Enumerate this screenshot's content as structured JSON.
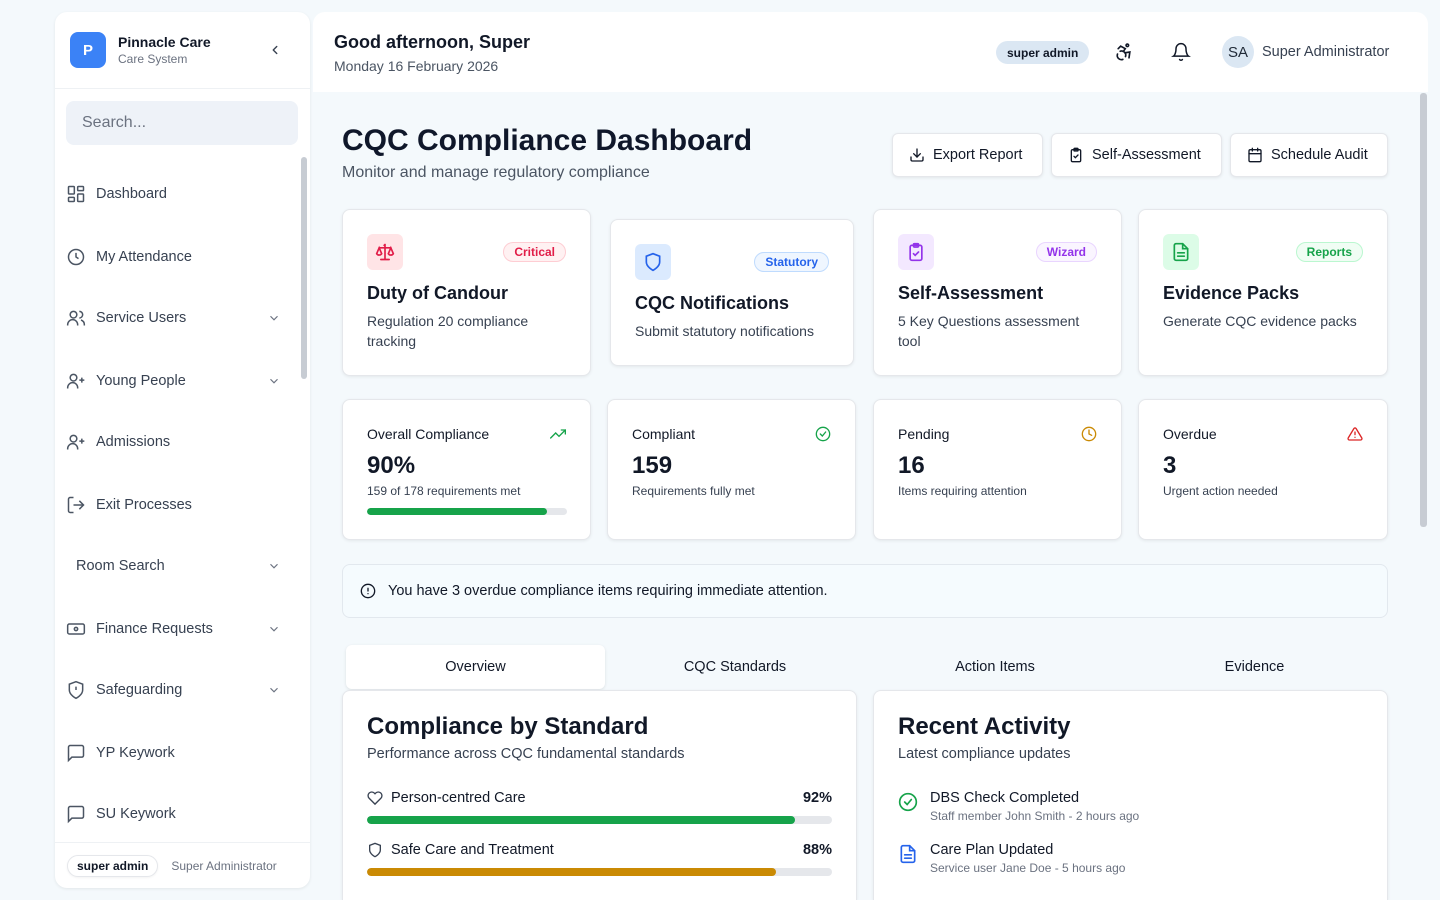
{
  "sidebar": {
    "logo_letter": "P",
    "brand_name": "Pinnacle Care",
    "brand_sub": "Care System",
    "search_placeholder": "Search...",
    "items": [
      {
        "label": "Dashboard",
        "icon": "grid-icon"
      },
      {
        "label": "My Attendance",
        "icon": "clock-icon"
      },
      {
        "label": "Service Users",
        "icon": "users-icon"
      },
      {
        "label": "Young People",
        "icon": "user-plus-icon"
      },
      {
        "label": "Admissions",
        "icon": "user-plus-icon"
      },
      {
        "label": "Exit Processes",
        "icon": "log-out-icon"
      },
      {
        "label": "Room Search"
      },
      {
        "label": "Finance Requests",
        "icon": "banknote-icon"
      },
      {
        "label": "Safeguarding",
        "icon": "shield-alert-icon"
      },
      {
        "label": "YP Keywork",
        "icon": "message-square-icon"
      },
      {
        "label": "SU Keywork",
        "icon": "message-square-icon"
      }
    ],
    "footer_role": "super admin",
    "footer_name": "Super Administrator"
  },
  "header": {
    "greeting": "Good afternoon, Super",
    "date": "Monday 16 February 2026",
    "role": "super admin",
    "avatar_initials": "SA",
    "user_name": "Super Administrator"
  },
  "page": {
    "title": "CQC Compliance Dashboard",
    "subtitle": "Monitor and manage regulatory compliance",
    "buttons": {
      "export": "Export Report",
      "self_assessment": "Self-Assessment",
      "schedule": "Schedule Audit"
    }
  },
  "features": [
    {
      "title": "Duty of Candour",
      "desc": "Regulation 20 compliance tracking",
      "badge": "Critical",
      "color": "#e11d48"
    },
    {
      "title": "CQC Notifications",
      "desc": "Submit statutory notifications",
      "badge": "Statutory",
      "color": "#2563eb"
    },
    {
      "title": "Self-Assessment",
      "desc": "5 Key Questions assessment tool",
      "badge": "Wizard",
      "color": "#9333ea"
    },
    {
      "title": "Evidence Packs",
      "desc": "Generate CQC evidence packs",
      "badge": "Reports",
      "color": "#16a34a"
    }
  ],
  "stats": [
    {
      "label": "Overall Compliance",
      "value": "90%",
      "sub": "159 of 178 requirements met",
      "progress": 0.9,
      "color": "#16a34a"
    },
    {
      "label": "Compliant",
      "value": "159",
      "sub": "Requirements fully met",
      "color": "#16a34a"
    },
    {
      "label": "Pending",
      "value": "16",
      "sub": "Items requiring attention",
      "color": "#ca8a04"
    },
    {
      "label": "Overdue",
      "value": "3",
      "sub": "Urgent action needed",
      "color": "#dc2626"
    }
  ],
  "alert": "You have 3 overdue compliance items requiring immediate attention.",
  "tabs": [
    "Overview",
    "CQC Standards",
    "Action Items",
    "Evidence"
  ],
  "standards_panel": {
    "title": "Compliance by Standard",
    "subtitle": "Performance across CQC fundamental standards",
    "rows": [
      {
        "label": "Person-centred Care",
        "pct": "92%",
        "value": 0.92,
        "color": "#16a34a"
      },
      {
        "label": "Safe Care and Treatment",
        "pct": "88%",
        "value": 0.88,
        "color": "#ca8a04"
      }
    ]
  },
  "activity_panel": {
    "title": "Recent Activity",
    "subtitle": "Latest compliance updates",
    "items": [
      {
        "title": "DBS Check Completed",
        "sub": "Staff member John Smith - 2 hours ago",
        "color": "#16a34a"
      },
      {
        "title": "Care Plan Updated",
        "sub": "Service user Jane Doe - 5 hours ago",
        "color": "#2563eb"
      }
    ]
  }
}
